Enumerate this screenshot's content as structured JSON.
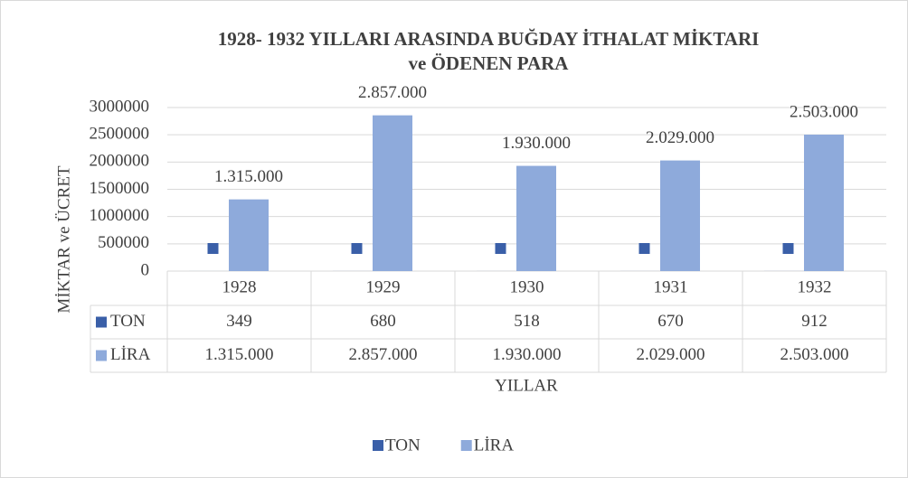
{
  "chart_data": {
    "type": "bar",
    "title": [
      "1928- 1932 YILLARI ARASINDA BUĞDAY İTHALAT MİKTARI",
      "ve ÖDENEN PARA"
    ],
    "y_label": "MİKTAR ve ÜCRET",
    "x_label": "YILLAR",
    "categories": [
      "1928",
      "1929",
      "1930",
      "1931",
      "1932"
    ],
    "series": [
      {
        "name": "TON",
        "color": "#3a5fa8",
        "values": [
          349,
          680,
          518,
          670,
          912
        ]
      },
      {
        "name": "LİRA",
        "color": "#8eaadb",
        "values": [
          1315000,
          2857000,
          1930000,
          2029000,
          2503000
        ],
        "value_labels": [
          "1.315.000",
          "2.857.000",
          "1.930.000",
          "2.029.000",
          "2.503.000"
        ]
      }
    ],
    "ylim": [
      0,
      3000000
    ],
    "yticks": [
      0,
      500000,
      1000000,
      1500000,
      2000000,
      2500000,
      3000000
    ],
    "grid": true,
    "legend": "bottom"
  }
}
